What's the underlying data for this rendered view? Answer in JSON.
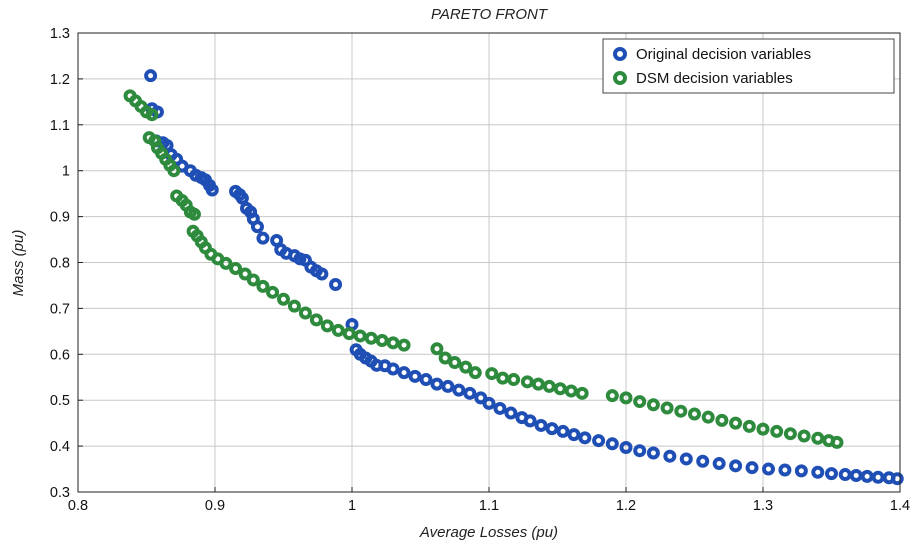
{
  "chart_data": {
    "type": "scatter",
    "title": "PARETO FRONT",
    "xlabel": "Average Losses (pu)",
    "ylabel": "Mass (pu)",
    "xlim": [
      0.8,
      1.4
    ],
    "ylim": [
      0.3,
      1.3
    ],
    "xticks": [
      "0.8",
      "0.9",
      "1",
      "1.1",
      "1.2",
      "1.3",
      "1.4"
    ],
    "yticks": [
      "0.3",
      "0.4",
      "0.5",
      "0.6",
      "0.7",
      "0.8",
      "0.9",
      "1",
      "1.1",
      "1.2",
      "1.3"
    ],
    "grid": true,
    "legend_position": "top-right",
    "series": [
      {
        "name": "Original decision variables",
        "color": "#1f4fb4",
        "points": [
          [
            0.853,
            1.207
          ],
          [
            0.854,
            1.135
          ],
          [
            0.858,
            1.128
          ],
          [
            0.857,
            1.065
          ],
          [
            0.862,
            1.061
          ],
          [
            0.865,
            1.055
          ],
          [
            0.868,
            1.035
          ],
          [
            0.872,
            1.025
          ],
          [
            0.876,
            1.01
          ],
          [
            0.882,
            1.0
          ],
          [
            0.886,
            0.99
          ],
          [
            0.89,
            0.985
          ],
          [
            0.893,
            0.98
          ],
          [
            0.896,
            0.968
          ],
          [
            0.898,
            0.958
          ],
          [
            0.915,
            0.955
          ],
          [
            0.918,
            0.948
          ],
          [
            0.92,
            0.94
          ],
          [
            0.923,
            0.918
          ],
          [
            0.926,
            0.91
          ],
          [
            0.928,
            0.895
          ],
          [
            0.931,
            0.878
          ],
          [
            0.935,
            0.853
          ],
          [
            0.945,
            0.848
          ],
          [
            0.948,
            0.828
          ],
          [
            0.952,
            0.82
          ],
          [
            0.958,
            0.815
          ],
          [
            0.962,
            0.808
          ],
          [
            0.966,
            0.805
          ],
          [
            0.97,
            0.79
          ],
          [
            0.974,
            0.782
          ],
          [
            0.978,
            0.775
          ],
          [
            0.988,
            0.752
          ],
          [
            1.0,
            0.665
          ],
          [
            1.003,
            0.61
          ],
          [
            1.006,
            0.6
          ],
          [
            1.01,
            0.592
          ],
          [
            1.014,
            0.585
          ],
          [
            1.018,
            0.576
          ],
          [
            1.024,
            0.575
          ],
          [
            1.03,
            0.568
          ],
          [
            1.038,
            0.56
          ],
          [
            1.046,
            0.552
          ],
          [
            1.054,
            0.545
          ],
          [
            1.062,
            0.535
          ],
          [
            1.07,
            0.53
          ],
          [
            1.078,
            0.522
          ],
          [
            1.086,
            0.515
          ],
          [
            1.094,
            0.505
          ],
          [
            1.1,
            0.493
          ],
          [
            1.108,
            0.482
          ],
          [
            1.116,
            0.472
          ],
          [
            1.124,
            0.462
          ],
          [
            1.13,
            0.455
          ],
          [
            1.138,
            0.445
          ],
          [
            1.146,
            0.438
          ],
          [
            1.154,
            0.432
          ],
          [
            1.162,
            0.425
          ],
          [
            1.17,
            0.418
          ],
          [
            1.18,
            0.412
          ],
          [
            1.19,
            0.405
          ],
          [
            1.2,
            0.397
          ],
          [
            1.21,
            0.39
          ],
          [
            1.22,
            0.385
          ],
          [
            1.232,
            0.378
          ],
          [
            1.244,
            0.372
          ],
          [
            1.256,
            0.367
          ],
          [
            1.268,
            0.362
          ],
          [
            1.28,
            0.357
          ],
          [
            1.292,
            0.353
          ],
          [
            1.304,
            0.35
          ],
          [
            1.316,
            0.348
          ],
          [
            1.328,
            0.346
          ],
          [
            1.34,
            0.343
          ],
          [
            1.35,
            0.34
          ],
          [
            1.36,
            0.338
          ],
          [
            1.368,
            0.336
          ],
          [
            1.376,
            0.334
          ],
          [
            1.384,
            0.332
          ],
          [
            1.392,
            0.331
          ],
          [
            1.398,
            0.329
          ]
        ]
      },
      {
        "name": "DSM decision variables",
        "color": "#2e8b3e",
        "points": [
          [
            0.838,
            1.163
          ],
          [
            0.842,
            1.152
          ],
          [
            0.846,
            1.14
          ],
          [
            0.85,
            1.128
          ],
          [
            0.854,
            1.122
          ],
          [
            0.852,
            1.072
          ],
          [
            0.856,
            1.065
          ],
          [
            0.858,
            1.05
          ],
          [
            0.861,
            1.038
          ],
          [
            0.864,
            1.025
          ],
          [
            0.867,
            1.012
          ],
          [
            0.87,
            1.0
          ],
          [
            0.872,
            0.945
          ],
          [
            0.876,
            0.935
          ],
          [
            0.879,
            0.925
          ],
          [
            0.882,
            0.91
          ],
          [
            0.885,
            0.905
          ],
          [
            0.884,
            0.868
          ],
          [
            0.887,
            0.858
          ],
          [
            0.89,
            0.845
          ],
          [
            0.893,
            0.832
          ],
          [
            0.897,
            0.818
          ],
          [
            0.902,
            0.808
          ],
          [
            0.908,
            0.798
          ],
          [
            0.915,
            0.787
          ],
          [
            0.922,
            0.775
          ],
          [
            0.928,
            0.762
          ],
          [
            0.935,
            0.748
          ],
          [
            0.942,
            0.735
          ],
          [
            0.95,
            0.72
          ],
          [
            0.958,
            0.705
          ],
          [
            0.966,
            0.69
          ],
          [
            0.974,
            0.675
          ],
          [
            0.982,
            0.662
          ],
          [
            0.99,
            0.652
          ],
          [
            0.998,
            0.645
          ],
          [
            1.006,
            0.64
          ],
          [
            1.014,
            0.635
          ],
          [
            1.022,
            0.63
          ],
          [
            1.03,
            0.625
          ],
          [
            1.038,
            0.62
          ],
          [
            1.062,
            0.612
          ],
          [
            1.068,
            0.592
          ],
          [
            1.075,
            0.582
          ],
          [
            1.083,
            0.572
          ],
          [
            1.09,
            0.56
          ],
          [
            1.102,
            0.558
          ],
          [
            1.11,
            0.548
          ],
          [
            1.118,
            0.545
          ],
          [
            1.128,
            0.54
          ],
          [
            1.136,
            0.535
          ],
          [
            1.144,
            0.53
          ],
          [
            1.152,
            0.525
          ],
          [
            1.16,
            0.52
          ],
          [
            1.168,
            0.515
          ],
          [
            1.19,
            0.51
          ],
          [
            1.2,
            0.505
          ],
          [
            1.21,
            0.497
          ],
          [
            1.22,
            0.49
          ],
          [
            1.23,
            0.483
          ],
          [
            1.24,
            0.476
          ],
          [
            1.25,
            0.47
          ],
          [
            1.26,
            0.463
          ],
          [
            1.27,
            0.456
          ],
          [
            1.28,
            0.45
          ],
          [
            1.29,
            0.443
          ],
          [
            1.3,
            0.437
          ],
          [
            1.31,
            0.432
          ],
          [
            1.32,
            0.427
          ],
          [
            1.33,
            0.422
          ],
          [
            1.34,
            0.417
          ],
          [
            1.348,
            0.412
          ],
          [
            1.354,
            0.408
          ]
        ]
      }
    ]
  }
}
